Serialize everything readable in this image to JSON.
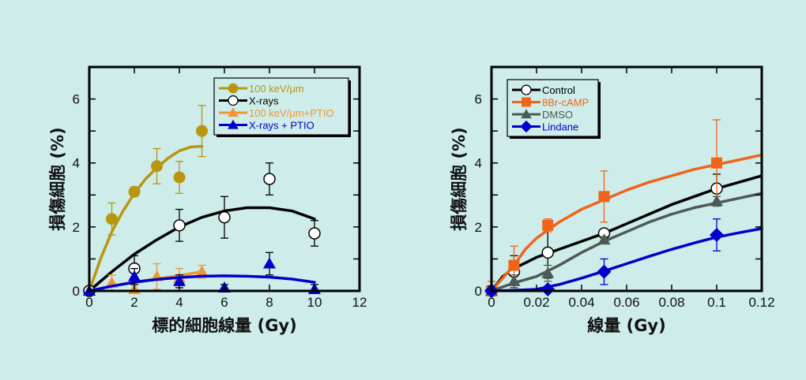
{
  "colors": {
    "background": "#cdecea",
    "gold": "#b8960f",
    "black": "#000000",
    "orange_light": "#f39530",
    "blue": "#0000cc",
    "orange": "#f0641a",
    "gray": "#4f5a55"
  },
  "chart_data": [
    {
      "type": "scatter",
      "xlabel": "標的細胞線量 (Gy)",
      "ylabel": "損傷細胞 (%)",
      "xlim": [
        0,
        12
      ],
      "ylim": [
        0,
        7
      ],
      "xticks": [
        0,
        2,
        4,
        6,
        8,
        10,
        12
      ],
      "xtick_labels": [
        "0",
        "2",
        "4",
        "6",
        "8",
        "10",
        "12"
      ],
      "yticks": [
        0,
        2,
        4,
        6
      ],
      "ytick_labels": [
        "0",
        "2",
        "4",
        "6"
      ],
      "legend_position": "top-right",
      "series": [
        {
          "name": "100 keV/μm",
          "color": "#b8960f",
          "marker": "circle-filled",
          "x": [
            0,
            1,
            2,
            3,
            4,
            5
          ],
          "y": [
            0,
            2.25,
            3.1,
            3.9,
            3.55,
            5.0
          ],
          "err": [
            0,
            0.5,
            0.15,
            0.55,
            0.5,
            0.8
          ],
          "fit": {
            "x": [
              0,
              0.5,
              1,
              1.5,
              2,
              2.5,
              3,
              3.5,
              4,
              4.5,
              5
            ],
            "y": [
              0,
              1.0,
              1.85,
              2.5,
              3.05,
              3.5,
              3.85,
              4.15,
              4.38,
              4.5,
              4.52
            ]
          }
        },
        {
          "name": "X-rays",
          "color": "#000000",
          "marker": "circle-open",
          "x": [
            0,
            2,
            4,
            6,
            8,
            10
          ],
          "y": [
            0,
            0.7,
            2.05,
            2.3,
            3.5,
            1.8
          ],
          "err": [
            0,
            0.4,
            0.5,
            0.65,
            0.5,
            0.4
          ],
          "fit": {
            "x": [
              0,
              1,
              2,
              3,
              4,
              5,
              6,
              7,
              8,
              9,
              10
            ],
            "y": [
              0,
              0.6,
              1.15,
              1.6,
              2.0,
              2.3,
              2.5,
              2.6,
              2.6,
              2.5,
              2.25
            ]
          }
        },
        {
          "name": "100 keV/μm+PTIO",
          "color": "#f39530",
          "marker": "triangle-filled",
          "x": [
            0,
            1,
            2,
            3,
            4,
            5
          ],
          "y": [
            0,
            0.25,
            0.05,
            0.45,
            0.4,
            0.6
          ],
          "err": [
            0,
            0.25,
            0,
            0.4,
            0.3,
            0.2
          ],
          "fit": {
            "x": [
              0,
              1,
              2,
              3,
              4,
              5
            ],
            "y": [
              0,
              0.15,
              0.28,
              0.38,
              0.48,
              0.6
            ]
          }
        },
        {
          "name": "X-rays + PTIO",
          "color": "#0000cc",
          "marker": "triangle-filled",
          "x": [
            0,
            2,
            4,
            6,
            8,
            10
          ],
          "y": [
            0,
            0.45,
            0.3,
            0.1,
            0.85,
            0.05
          ],
          "err": [
            0,
            0.25,
            0.2,
            0.1,
            0.35,
            0.15
          ],
          "fit": {
            "x": [
              0,
              1,
              2,
              3,
              4,
              5,
              6,
              7,
              8,
              9,
              10
            ],
            "y": [
              0,
              0.15,
              0.27,
              0.36,
              0.42,
              0.46,
              0.47,
              0.46,
              0.43,
              0.37,
              0.27
            ]
          }
        }
      ]
    },
    {
      "type": "scatter",
      "xlabel": "線量 (Gy)",
      "ylabel": "損傷細胞 (%)",
      "xlim": [
        0,
        0.12
      ],
      "ylim": [
        0,
        7
      ],
      "xticks": [
        0,
        0.02,
        0.04,
        0.06,
        0.08,
        0.1,
        0.12
      ],
      "xtick_labels": [
        "0",
        "0.02",
        "0.04",
        "0.06",
        "0.08",
        "0.1",
        "0.12"
      ],
      "yticks": [
        0,
        2,
        4,
        6
      ],
      "ytick_labels": [
        "0",
        "2",
        "4",
        "6"
      ],
      "legend_position": "top-left",
      "series": [
        {
          "name": "Control",
          "color": "#000000",
          "marker": "circle-open",
          "x": [
            0,
            0.01,
            0.025,
            0.05,
            0.1
          ],
          "y": [
            0,
            0.6,
            1.2,
            1.8,
            3.2
          ],
          "err": [
            0,
            0.5,
            0.8,
            0.1,
            0.45
          ],
          "fit": {
            "x": [
              0,
              0.005,
              0.01,
              0.02,
              0.03,
              0.04,
              0.05,
              0.06,
              0.07,
              0.08,
              0.09,
              0.1,
              0.11,
              0.12
            ],
            "y": [
              0,
              0.45,
              0.7,
              1.05,
              1.3,
              1.55,
              1.8,
              2.1,
              2.4,
              2.7,
              2.95,
              3.2,
              3.4,
              3.6
            ]
          }
        },
        {
          "name": "8Br-cAMP",
          "color": "#f0641a",
          "marker": "square-filled",
          "x": [
            0,
            0.01,
            0.025,
            0.05,
            0.1
          ],
          "y": [
            0,
            0.8,
            2.05,
            2.95,
            4.0
          ],
          "err": [
            0.3,
            0.6,
            0.2,
            0.8,
            1.35
          ],
          "fit": {
            "x": [
              0,
              0.005,
              0.01,
              0.015,
              0.02,
              0.03,
              0.04,
              0.05,
              0.06,
              0.07,
              0.08,
              0.09,
              0.1,
              0.11,
              0.12
            ],
            "y": [
              0,
              0.4,
              0.8,
              1.3,
              1.65,
              2.15,
              2.55,
              2.85,
              3.15,
              3.4,
              3.6,
              3.8,
              3.95,
              4.1,
              4.25
            ]
          }
        },
        {
          "name": "DMSO",
          "color": "#4f5a55",
          "marker": "triangle-filled",
          "x": [
            0,
            0.01,
            0.025,
            0.05,
            0.1
          ],
          "y": [
            0,
            0.3,
            0.55,
            1.6,
            2.8
          ],
          "err": [
            0,
            0.2,
            0.25,
            0.1,
            0.15
          ],
          "fit": {
            "x": [
              0,
              0.01,
              0.02,
              0.03,
              0.04,
              0.05,
              0.06,
              0.07,
              0.08,
              0.09,
              0.1,
              0.11,
              0.12
            ],
            "y": [
              0,
              0.25,
              0.45,
              0.8,
              1.2,
              1.55,
              1.85,
              2.15,
              2.4,
              2.6,
              2.75,
              2.9,
              3.05
            ]
          }
        },
        {
          "name": "Lindane",
          "color": "#0000cc",
          "marker": "diamond-filled",
          "x": [
            0,
            0.025,
            0.05,
            0.1
          ],
          "y": [
            0,
            0.05,
            0.6,
            1.75
          ],
          "err": [
            0.15,
            0.1,
            0.4,
            0.5
          ],
          "fit": {
            "x": [
              0,
              0.01,
              0.02,
              0.03,
              0.04,
              0.05,
              0.06,
              0.07,
              0.08,
              0.09,
              0.1,
              0.11,
              0.12
            ],
            "y": [
              0,
              0.02,
              0.05,
              0.2,
              0.4,
              0.62,
              0.85,
              1.08,
              1.3,
              1.5,
              1.68,
              1.82,
              1.95
            ]
          }
        }
      ]
    }
  ]
}
